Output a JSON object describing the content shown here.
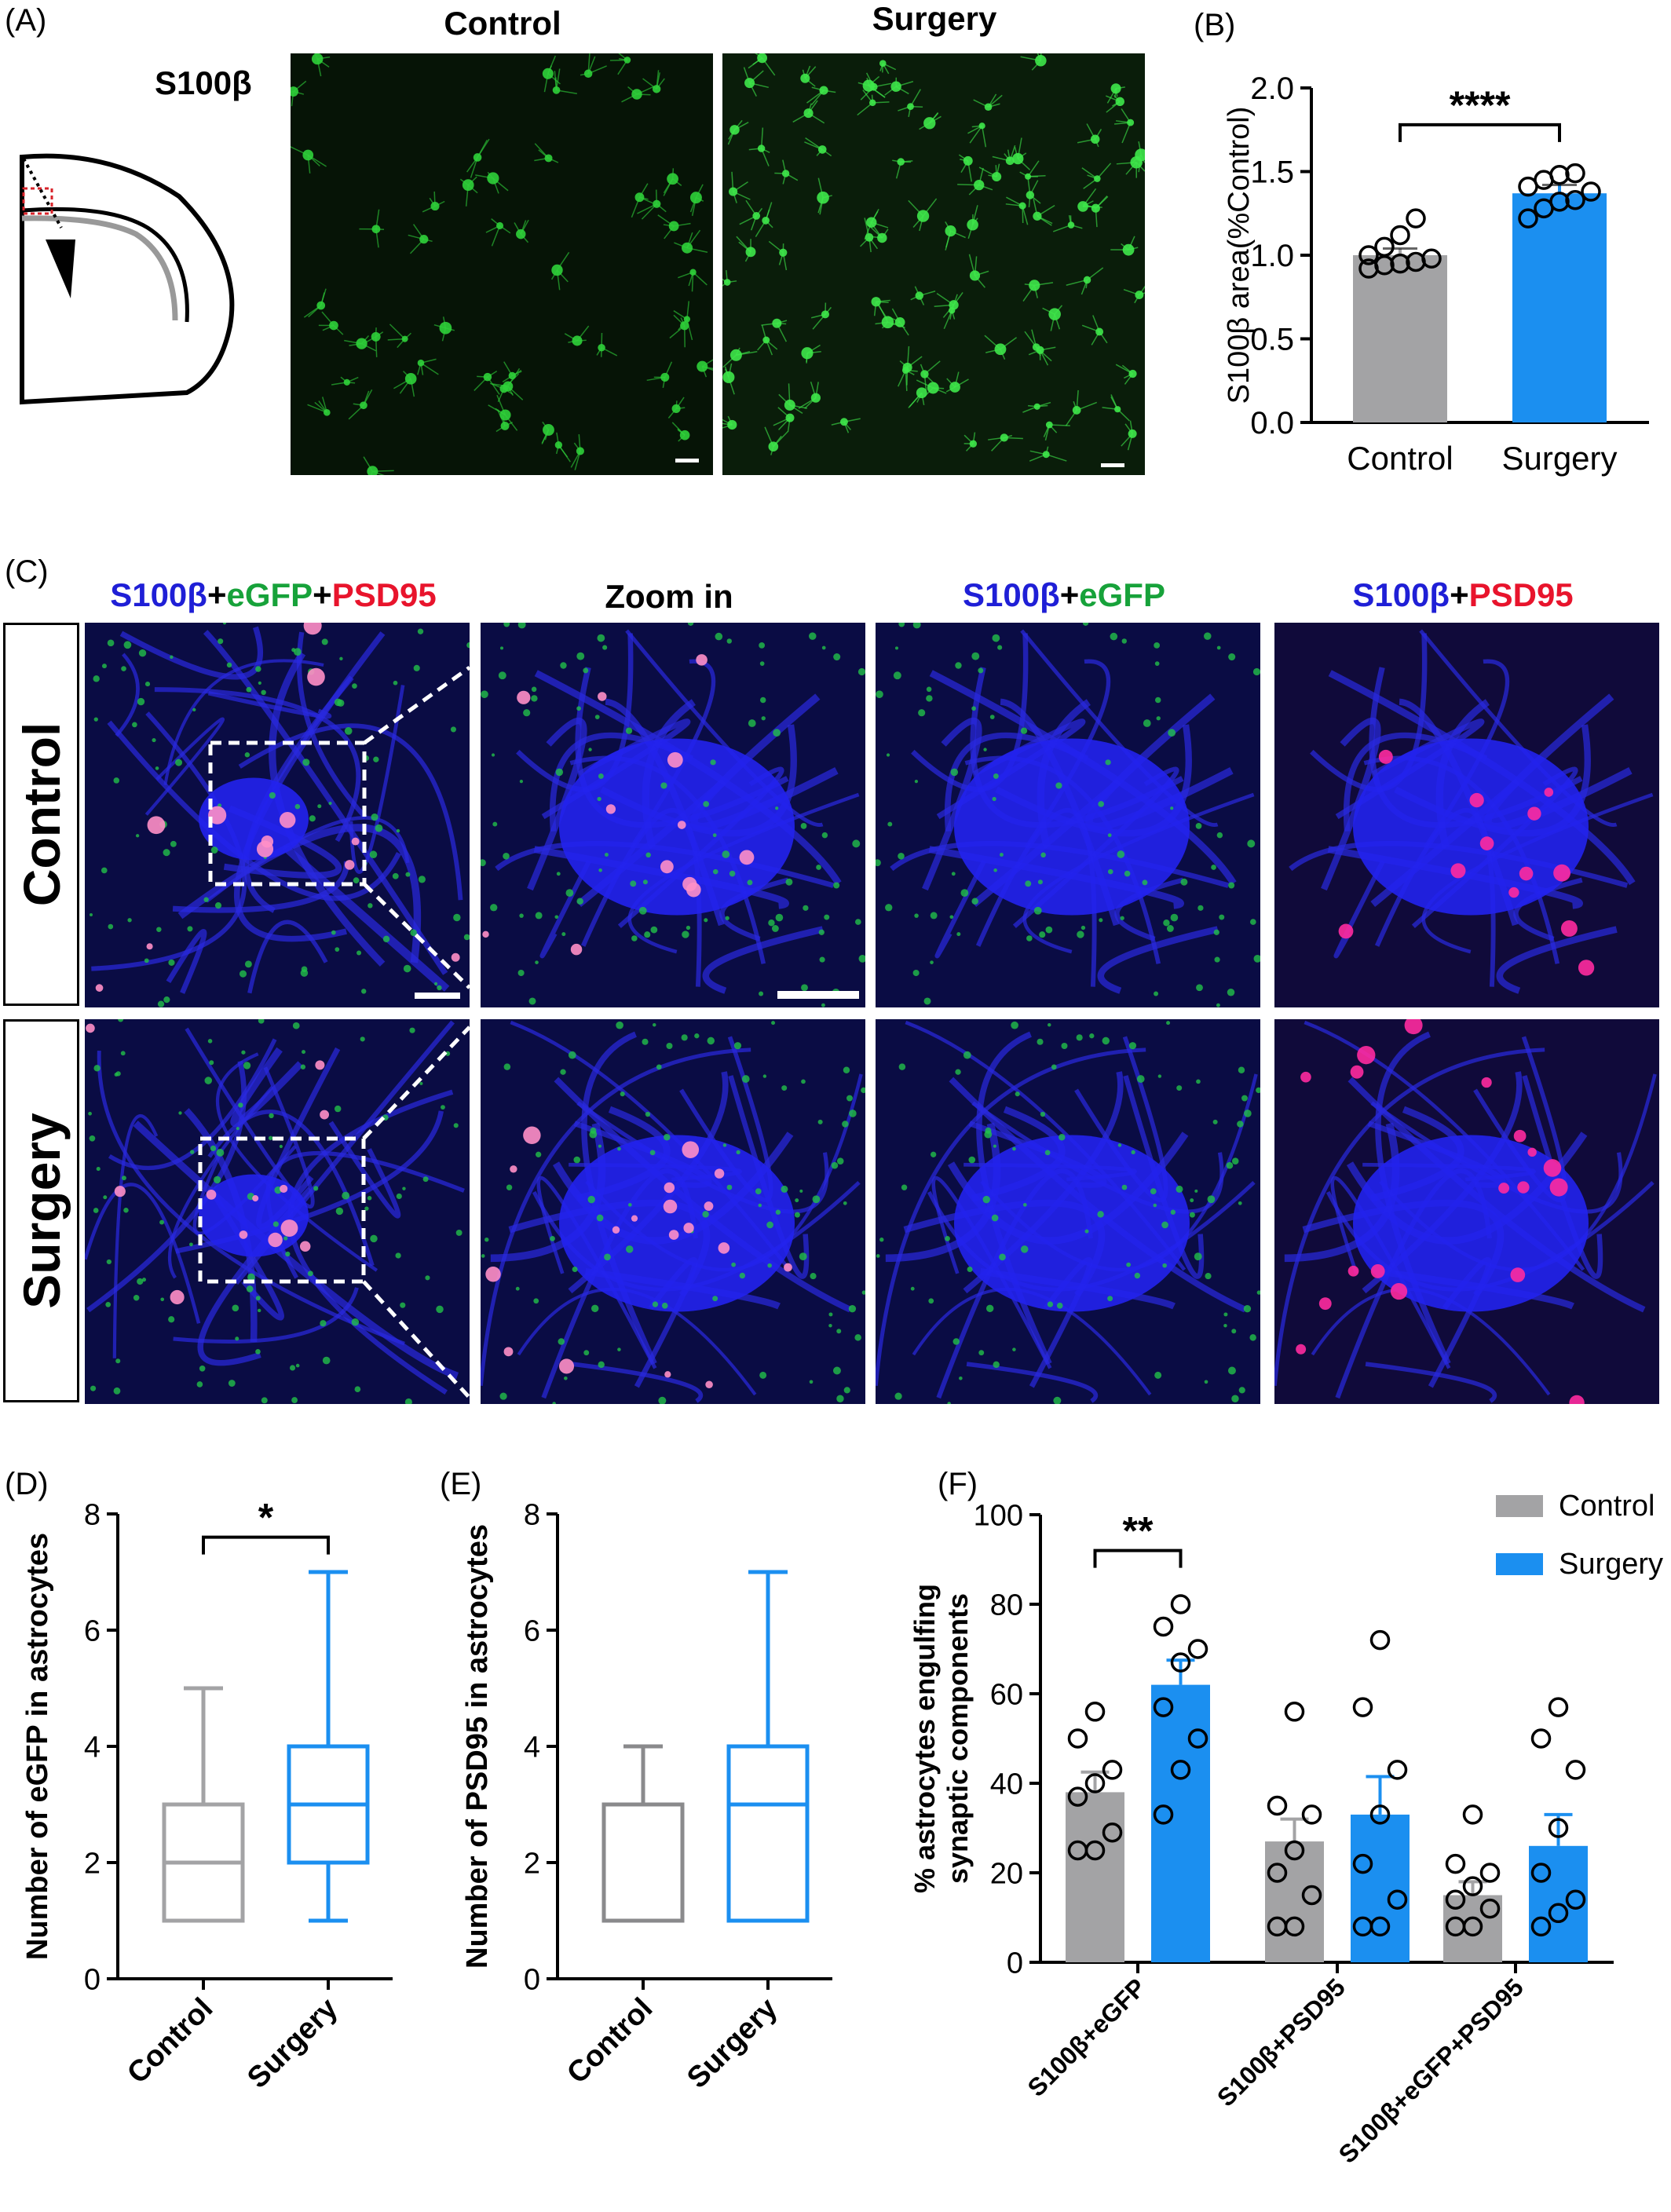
{
  "panel_labels": {
    "A": "(A)",
    "B": "(B)",
    "C": "(C)",
    "D": "(D)",
    "E": "(E)",
    "F": "(F)"
  },
  "panel_a": {
    "marker": "S100β",
    "col_control": "Control",
    "col_surgery": "Surgery"
  },
  "panel_c": {
    "col1": {
      "p1": "S100β",
      "p2": "+",
      "p3": "eGFP",
      "p4": "+",
      "p5": "PSD95"
    },
    "col2": "Zoom in",
    "col3": {
      "p1": "S100β",
      "p2": "+",
      "p3": "eGFP"
    },
    "col4": {
      "p1": "S100β",
      "p2": "+",
      "p3": "PSD95"
    },
    "row_control": "Control",
    "row_surgery": "Surgery"
  },
  "colors": {
    "control": "#a3a3a5",
    "surgery": "#1b8ff0",
    "s100b_blue": "#1f1fd6",
    "egfp_green": "#17a23a",
    "psd95_red": "#e8142c"
  },
  "chart_data": [
    {
      "id": "B",
      "type": "bar",
      "categories": [
        "Control",
        "Surgery"
      ],
      "values": [
        1.0,
        1.37
      ],
      "sem": [
        0.04,
        0.05
      ],
      "points": [
        [
          0.92,
          0.94,
          0.95,
          0.96,
          0.98,
          1.0,
          1.05,
          1.12,
          1.22
        ],
        [
          1.22,
          1.28,
          1.32,
          1.33,
          1.38,
          1.41,
          1.45,
          1.48,
          1.49
        ]
      ],
      "ylabel": "S100β area(%Control)",
      "ylim": [
        0,
        2.0
      ],
      "yticks": [
        "0.0",
        "0.5",
        "1.0",
        "1.5",
        "2.0"
      ],
      "significance": "****"
    },
    {
      "id": "D",
      "type": "box",
      "categories": [
        "Control",
        "Surgery"
      ],
      "boxes": [
        {
          "min": 1,
          "q1": 1,
          "median": 2,
          "q3": 3,
          "max": 5
        },
        {
          "min": 1,
          "q1": 2,
          "median": 3,
          "q3": 4,
          "max": 7
        }
      ],
      "ylabel": "Number of eGFP in astrocytes",
      "ylim": [
        0,
        8
      ],
      "yticks": [
        "0",
        "2",
        "4",
        "6",
        "8"
      ],
      "significance": "*"
    },
    {
      "id": "E",
      "type": "box",
      "categories": [
        "Control",
        "Surgery"
      ],
      "boxes": [
        {
          "min": 1,
          "q1": 1,
          "median": 3,
          "q3": 3,
          "max": 4
        },
        {
          "min": 1,
          "q1": 1,
          "median": 3,
          "q3": 4,
          "max": 7
        }
      ],
      "ylabel": "Number of PSD95  in astrocytes",
      "ylim": [
        0,
        8
      ],
      "yticks": [
        "0",
        "2",
        "4",
        "6",
        "8"
      ]
    },
    {
      "id": "F",
      "type": "bar",
      "categories": [
        "S100β+eGFP",
        "S100β+PSD95",
        "S100β+eGFP+PSD95"
      ],
      "series": [
        {
          "name": "Control",
          "values": [
            38,
            27,
            15
          ],
          "sem": [
            4.5,
            5,
            3
          ],
          "points": [
            [
              25,
              25,
              29,
              37,
              40,
              43,
              50,
              56
            ],
            [
              8,
              8,
              15,
              20,
              25,
              33,
              35,
              56
            ],
            [
              8,
              8,
              12,
              14,
              17,
              20,
              22,
              33
            ]
          ]
        },
        {
          "name": "Surgery",
          "values": [
            62,
            33,
            26
          ],
          "sem": [
            5.5,
            8.5,
            7
          ],
          "points": [
            [
              33,
              43,
              50,
              57,
              67,
              70,
              75,
              80
            ],
            [
              8,
              8,
              14,
              22,
              33,
              43,
              57,
              72
            ],
            [
              8,
              11,
              14,
              20,
              30,
              43,
              50,
              57
            ]
          ]
        }
      ],
      "ylabel": "% astrocytes engulfing\nsynaptic components",
      "ylim": [
        0,
        100
      ],
      "yticks": [
        "0",
        "20",
        "40",
        "60",
        "80",
        "100"
      ],
      "legend_position": "top-right",
      "significance": [
        {
          "group": "S100β+eGFP",
          "label": "**"
        }
      ]
    }
  ]
}
